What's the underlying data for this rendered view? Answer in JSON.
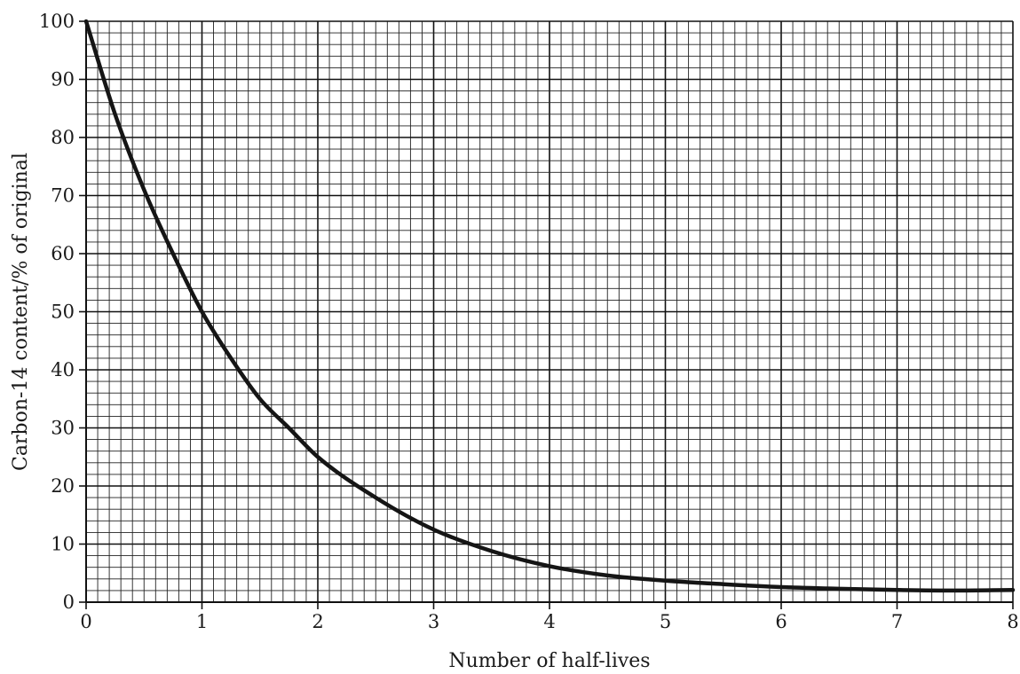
{
  "chart_data": {
    "type": "line",
    "title": "",
    "xlabel": "Number of half-lives",
    "ylabel": "Carbon-14 content/% of original",
    "xlim": [
      0,
      8
    ],
    "ylim": [
      0,
      100
    ],
    "x_ticks": [
      "0",
      "1",
      "2",
      "3",
      "4",
      "5",
      "6",
      "7",
      "8"
    ],
    "y_ticks": [
      "0",
      "10",
      "20",
      "30",
      "40",
      "50",
      "60",
      "70",
      "80",
      "90",
      "100"
    ],
    "grid": true,
    "grid_minor_divisions_per_x_unit": 10,
    "grid_minor_divisions_per_10_y": 5,
    "series": [
      {
        "x": [
          0,
          0.25,
          0.5,
          0.75,
          1,
          1.25,
          1.5,
          1.75,
          2,
          2.5,
          3,
          3.5,
          4,
          4.5,
          5,
          5.5,
          6,
          6.5,
          7,
          7.5,
          8
        ],
        "y": [
          100,
          84,
          71,
          60,
          50,
          42,
          35,
          30,
          25,
          18,
          12.5,
          8.8,
          6.2,
          4.6,
          3.7,
          3.1,
          2.6,
          2.3,
          2.1,
          2.0,
          2.1
        ]
      }
    ],
    "colors": {
      "line": "#151515",
      "grid": "#222222"
    }
  }
}
